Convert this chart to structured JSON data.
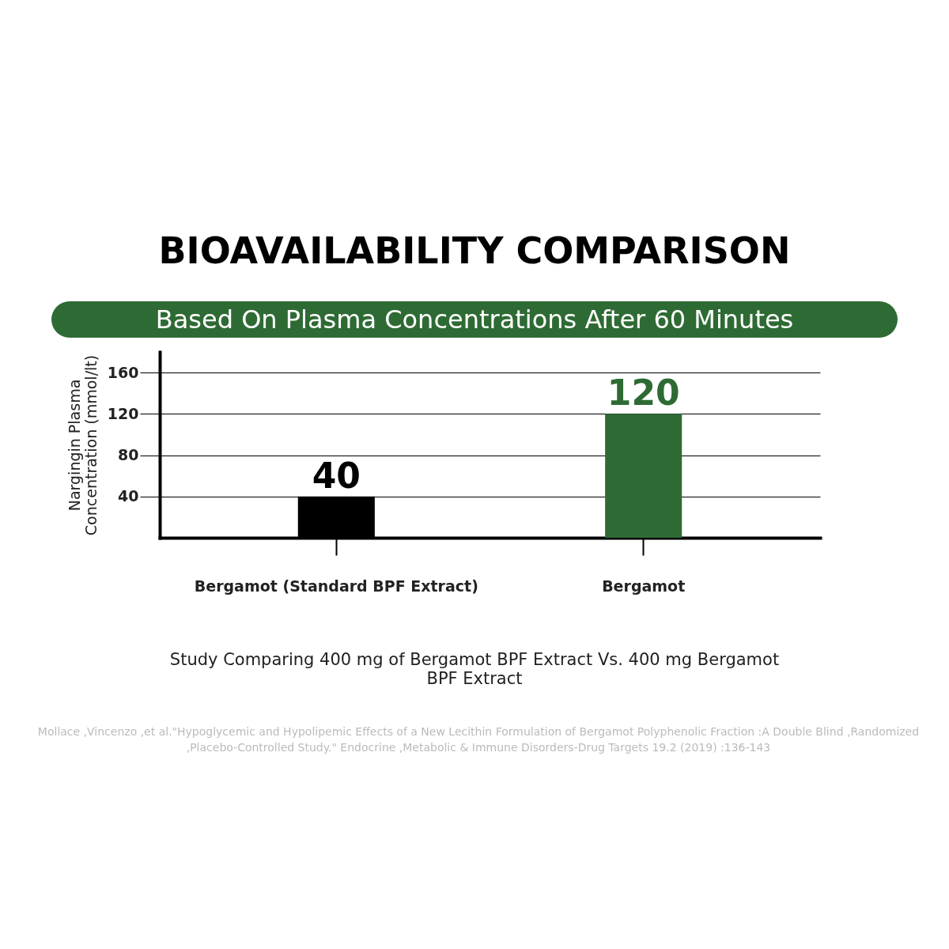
{
  "chart_data": {
    "type": "bar",
    "title": "BIOAVAILABILITY COMPARISON",
    "subtitle": "Based On Plasma Concentrations After 60 Minutes",
    "ylabel": "Nargingin Plasma\nConcentration (mmol/lt)",
    "categories": [
      "Bergamot (Standard BPF Extract)",
      "Bergamot"
    ],
    "values": [
      40,
      120
    ],
    "colors": [
      "#000000",
      "#2e6b34"
    ],
    "ylim": [
      0,
      180
    ],
    "yticks": [
      40,
      80,
      120,
      160
    ],
    "grid": "y",
    "data_labels": true,
    "legend": false,
    "annotations": [
      "Study Comparing 400 mg of Bergamot BPF Extract Vs. 400 mg Bergamot BPF Extract",
      "Mollace ,Vincenzo ,et al.\"Hypoglycemic and Hypolipemic Effects of a New Lecithin Formulation of Bergamot Polyphenolic  Fraction  :A Double Blind ,Randomized ,Placebo-Controlled Study.\" Endocrine ,Metabolic & Immune Disorders-Drug Targets 19.2 (2019) :136-143"
    ]
  }
}
